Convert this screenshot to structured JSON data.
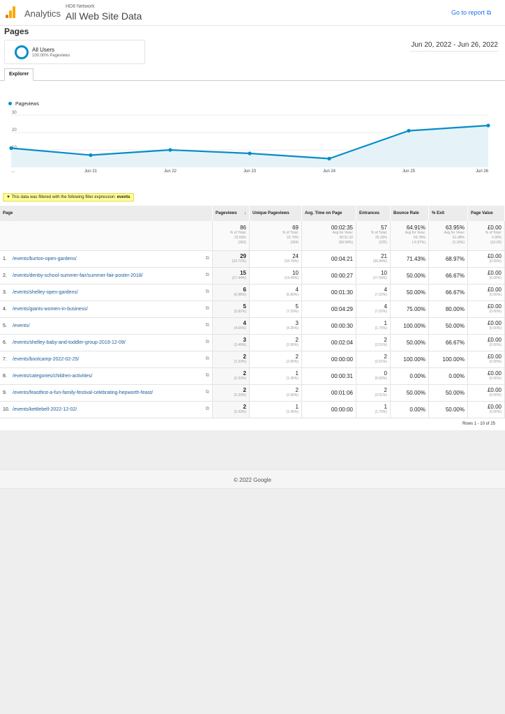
{
  "header": {
    "brand": "Analytics",
    "network": "HD8 Network",
    "property": "All Web Site Data",
    "go_to_report": "Go to report"
  },
  "page_title": "Pages",
  "segment": {
    "name": "All Users",
    "sub": "100.00% Pageviews"
  },
  "date_range": "Jun 20, 2022 - Jun 26, 2022",
  "tabs": [
    "Explorer"
  ],
  "chart_data": {
    "type": "line",
    "series": [
      {
        "name": "Pageviews",
        "values": [
          11,
          7,
          10,
          8,
          5,
          21,
          24
        ]
      }
    ],
    "categories": [
      "...",
      "Jun 21",
      "Jun 22",
      "Jun 23",
      "Jun 24",
      "Jun 25",
      "Jun 26"
    ],
    "y_ticks": [
      "10",
      "20",
      "30"
    ],
    "ylim": [
      0,
      30
    ],
    "color": "#058dc7"
  },
  "filter": {
    "text": "This data was filtered with the following filter expression:",
    "expr": "events"
  },
  "table": {
    "columns": [
      "Page",
      "Pageviews",
      "Unique Pageviews",
      "Avg. Time on Page",
      "Entrances",
      "Bounce Rate",
      "% Exit",
      "Page Value"
    ],
    "totals": [
      {
        "v": "86",
        "l1": "% of Total:",
        "l2": "23.69%",
        "l3": "(363)"
      },
      {
        "v": "69",
        "l1": "% of Total:",
        "l2": "22.70%",
        "l3": "(304)"
      },
      {
        "v": "00:02:35",
        "l1": "Avg for View:",
        "l2": "00:01:32",
        "l3": "(68.58%)"
      },
      {
        "v": "57",
        "l1": "% of Total:",
        "l2": "25.33%",
        "l3": "(225)"
      },
      {
        "v": "64.91%",
        "l1": "Avg for View:",
        "l2": "69.78%",
        "l3": "(-6.97%)"
      },
      {
        "v": "63.95%",
        "l1": "Avg for View:",
        "l2": "61.98%",
        "l3": "(3.18%)"
      },
      {
        "v": "£0.00",
        "l1": "% of Total:",
        "l2": "0.00%",
        "l3": "(£0.00)"
      }
    ],
    "rows": [
      {
        "n": "1.",
        "page": "/events/burton-open-gardens/",
        "pv": "29",
        "pvp": "(33.72%)",
        "upv": "24",
        "upvp": "(34.78%)",
        "t": "00:04:21",
        "e": "21",
        "ep": "(36.84%)",
        "b": "71.43%",
        "x": "68.97%",
        "val": "£0.00",
        "valp": "(0.00%)"
      },
      {
        "n": "2.",
        "page": "/events/denby-school-summer-fair/summer-fair-poster-2018/",
        "pv": "15",
        "pvp": "(17.44%)",
        "upv": "10",
        "upvp": "(14.49%)",
        "t": "00:00:27",
        "e": "10",
        "ep": "(17.54%)",
        "b": "50.00%",
        "x": "66.67%",
        "val": "£0.00",
        "valp": "(0.00%)"
      },
      {
        "n": "3.",
        "page": "/events/shelley-open-gardens/",
        "pv": "6",
        "pvp": "(6.98%)",
        "upv": "4",
        "upvp": "(5.80%)",
        "t": "00:01:30",
        "e": "4",
        "ep": "(7.02%)",
        "b": "50.00%",
        "x": "66.67%",
        "val": "£0.00",
        "valp": "(0.00%)"
      },
      {
        "n": "4.",
        "page": "/events/giants-women-in-business/",
        "pv": "5",
        "pvp": "(5.81%)",
        "upv": "5",
        "upvp": "(7.25%)",
        "t": "00:04:29",
        "e": "4",
        "ep": "(7.02%)",
        "b": "75.00%",
        "x": "80.00%",
        "val": "£0.00",
        "valp": "(0.00%)"
      },
      {
        "n": "5.",
        "page": "/events/",
        "pv": "4",
        "pvp": "(4.65%)",
        "upv": "3",
        "upvp": "(4.35%)",
        "t": "00:00:30",
        "e": "1",
        "ep": "(1.75%)",
        "b": "100.00%",
        "x": "50.00%",
        "val": "£0.00",
        "valp": "(0.00%)"
      },
      {
        "n": "6.",
        "page": "/events/shelley-baby-and-toddler-group-2019-12-09/",
        "pv": "3",
        "pvp": "(3.49%)",
        "upv": "2",
        "upvp": "(2.90%)",
        "t": "00:02:04",
        "e": "2",
        "ep": "(3.51%)",
        "b": "50.00%",
        "x": "66.67%",
        "val": "£0.00",
        "valp": "(0.00%)"
      },
      {
        "n": "7.",
        "page": "/events/bootcamp-2022-02-25/",
        "pv": "2",
        "pvp": "(2.33%)",
        "upv": "2",
        "upvp": "(2.90%)",
        "t": "00:00:00",
        "e": "2",
        "ep": "(3.51%)",
        "b": "100.00%",
        "x": "100.00%",
        "val": "£0.00",
        "valp": "(0.00%)"
      },
      {
        "n": "8.",
        "page": "/events/categories/children-activities/",
        "pv": "2",
        "pvp": "(2.33%)",
        "upv": "1",
        "upvp": "(1.45%)",
        "t": "00:00:31",
        "e": "0",
        "ep": "(0.00%)",
        "b": "0.00%",
        "x": "0.00%",
        "val": "£0.00",
        "valp": "(0.00%)"
      },
      {
        "n": "9.",
        "page": "/events/feastfest-a-fun-family-festival-celebrating-hepworth-feast/",
        "pv": "2",
        "pvp": "(2.33%)",
        "upv": "2",
        "upvp": "(2.90%)",
        "t": "00:01:06",
        "e": "2",
        "ep": "(3.51%)",
        "b": "50.00%",
        "x": "50.00%",
        "val": "£0.00",
        "valp": "(0.00%)"
      },
      {
        "n": "10.",
        "page": "/events/kettlebell-2022-12-02/",
        "pv": "2",
        "pvp": "(2.33%)",
        "upv": "1",
        "upvp": "(1.45%)",
        "t": "00:00:00",
        "e": "1",
        "ep": "(1.75%)",
        "b": "0.00%",
        "x": "50.00%",
        "val": "£0.00",
        "valp": "(0.00%)"
      }
    ]
  },
  "rows_info": "Rows 1 - 10 of 25",
  "footer": "© 2022 Google"
}
